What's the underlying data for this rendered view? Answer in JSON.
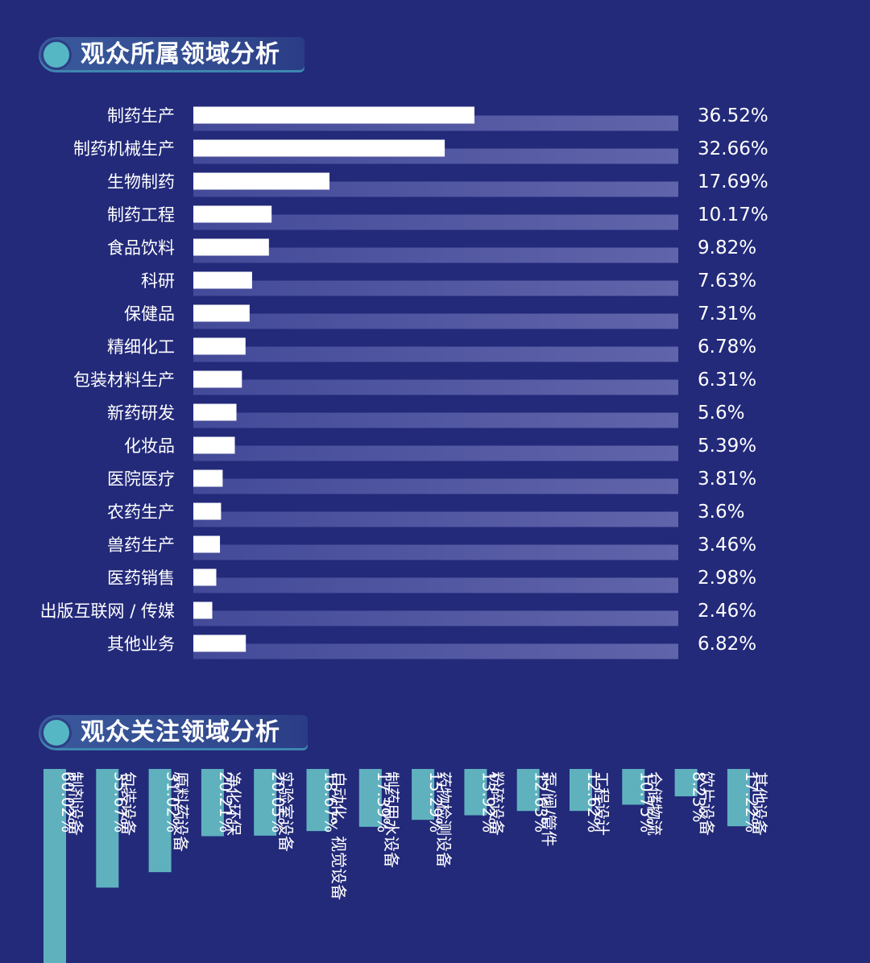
{
  "section1": {
    "title": "观众所属领域分析"
  },
  "section2": {
    "title": "观众关注领域分析"
  },
  "colors": {
    "background": "#232a7a",
    "bar_white": "#ffffff",
    "bar_teal": "#5fb1be",
    "track": "#5a60a6"
  },
  "chart_data": [
    {
      "type": "bar",
      "orientation": "horizontal",
      "title": "观众所属领域分析",
      "categories": [
        "制药生产",
        "制药机械生产",
        "生物制药",
        "制药工程",
        "食品饮料",
        "科研",
        "保健品",
        "精细化工",
        "包装材料生产",
        "新药研发",
        "化妆品",
        "医院医疗",
        "农药生产",
        "兽药生产",
        "医药销售",
        "出版互联网 / 传媒",
        "其他业务"
      ],
      "values": [
        36.52,
        32.66,
        17.69,
        10.17,
        9.82,
        7.63,
        7.31,
        6.78,
        6.31,
        5.6,
        5.39,
        3.81,
        3.6,
        3.46,
        2.98,
        2.46,
        6.82
      ],
      "value_labels": [
        "36.52%",
        "32.66%",
        "17.69%",
        "10.17%",
        "9.82%",
        "7.63%",
        "7.31%",
        "6.78%",
        "6.31%",
        "5.6%",
        "5.39%",
        "3.81%",
        "3.6%",
        "3.46%",
        "2.98%",
        "2.46%",
        "6.82%"
      ],
      "xlim": [
        0,
        63
      ],
      "unit": "%"
    },
    {
      "type": "bar",
      "orientation": "vertical-hanging",
      "title": "观众关注领域分析",
      "categories": [
        "制剂设备",
        "包装设备",
        "原料药设备",
        "净化环保",
        "实验室设备",
        "自动化、视觉设备",
        "制药用水设备",
        "药物检测设备",
        "粉碎设备",
        "泵/阀/管件",
        "工程设计",
        "仓储物流",
        "饮片设备",
        "其他设备"
      ],
      "values": [
        60.02,
        35.67,
        31.02,
        20.21,
        20.05,
        18.67,
        17.39,
        15.29,
        13.92,
        12.63,
        12.62,
        10.75,
        8.23,
        17.22
      ],
      "value_labels": [
        "60.02%",
        "35.67%",
        "31.02%",
        "20.21%",
        "20.05%",
        "18.67%",
        "17.39%",
        "15.29%",
        "13.92%",
        "12.63%",
        "12.62%",
        "10.75%",
        "8.23%",
        "17.22%"
      ],
      "unit": "%"
    }
  ]
}
